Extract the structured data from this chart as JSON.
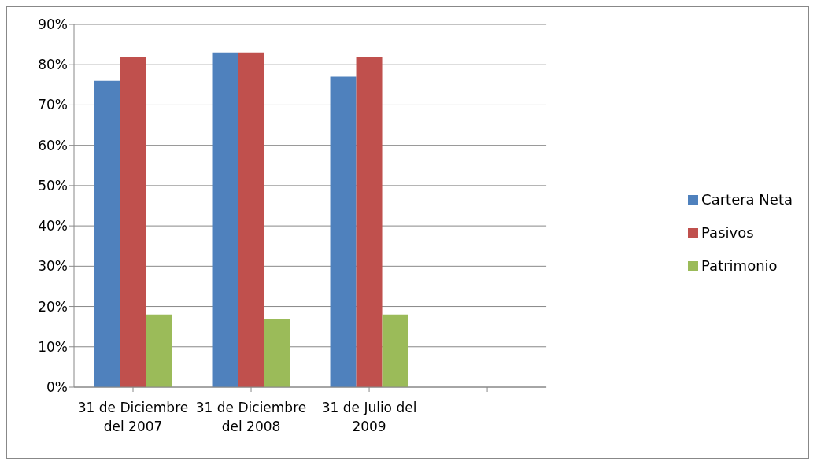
{
  "chart_data": {
    "type": "bar",
    "categories": [
      "31 de Diciembre del 2007",
      "31 de Diciembre del 2008",
      "31 de Julio del 2009",
      null
    ],
    "series": [
      {
        "name": "Cartera Neta",
        "color": "#4f81bd",
        "values": [
          76,
          83,
          77,
          null
        ]
      },
      {
        "name": "Pasivos",
        "color": "#c0504d",
        "values": [
          82,
          83,
          82,
          null
        ]
      },
      {
        "name": "Patrimonio",
        "color": "#9bbb59",
        "values": [
          18,
          17,
          18,
          null
        ]
      }
    ],
    "ylim": [
      0,
      90
    ],
    "yticks": [
      {
        "value": 0,
        "label": "0%"
      },
      {
        "value": 10,
        "label": "10%"
      },
      {
        "value": 20,
        "label": "20%"
      },
      {
        "value": 30,
        "label": "30%"
      },
      {
        "value": 40,
        "label": "40%"
      },
      {
        "value": 50,
        "label": "50%"
      },
      {
        "value": 60,
        "label": "60%"
      },
      {
        "value": 70,
        "label": "70%"
      },
      {
        "value": 80,
        "label": "80%"
      },
      {
        "value": 90,
        "label": "90%"
      }
    ],
    "grid": "y",
    "legend": "right"
  }
}
